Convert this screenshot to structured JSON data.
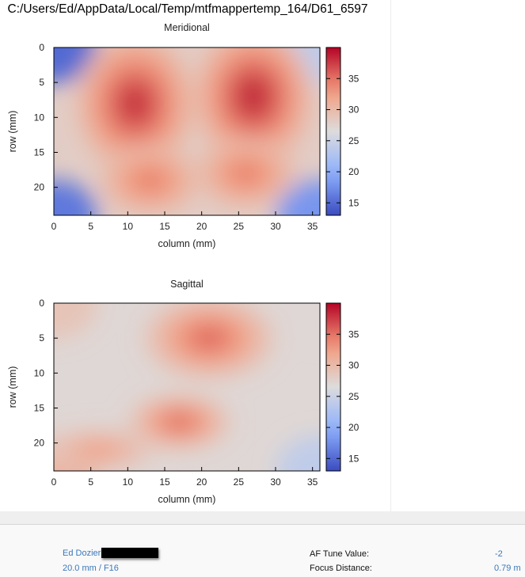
{
  "file_title": "C:/Users/Ed/AppData/Local/Temp/mtfmappertemp_164/D61_6597",
  "chart_data": [
    {
      "type": "heatmap",
      "title": "Meridional",
      "xlabel": "column (mm)",
      "ylabel": "row (mm)",
      "xlim": [
        0,
        36
      ],
      "ylim": [
        0,
        24
      ],
      "y_inverted": true,
      "xticks": [
        0,
        5,
        10,
        15,
        20,
        25,
        30,
        35
      ],
      "yticks": [
        0,
        5,
        10,
        15,
        20
      ],
      "colorbar": {
        "min": 13,
        "max": 40,
        "ticks": [
          15,
          20,
          25,
          30,
          35
        ]
      },
      "background_value": 28,
      "blobs": [
        {
          "x": 11,
          "y": 8,
          "rx": 8,
          "ry": 10,
          "peak": 38.5
        },
        {
          "x": 27,
          "y": 7,
          "rx": 8,
          "ry": 10,
          "peak": 39
        },
        {
          "x": 13,
          "y": 19,
          "rx": 7,
          "ry": 5,
          "peak": 35
        },
        {
          "x": 26,
          "y": 18,
          "rx": 7,
          "ry": 5,
          "peak": 35
        }
      ],
      "corner_values": {
        "top_left": 15,
        "top_right": 24,
        "bottom_left": 16,
        "bottom_right": 18
      }
    },
    {
      "type": "heatmap",
      "title": "Sagittal",
      "xlabel": "column (mm)",
      "ylabel": "row (mm)",
      "xlim": [
        0,
        36
      ],
      "ylim": [
        0,
        24
      ],
      "y_inverted": true,
      "xticks": [
        0,
        5,
        10,
        15,
        20,
        25,
        30,
        35
      ],
      "yticks": [
        0,
        5,
        10,
        15,
        20
      ],
      "colorbar": {
        "min": 13,
        "max": 40,
        "ticks": [
          15,
          20,
          25,
          30,
          35
        ]
      },
      "background_value": 27,
      "blobs": [
        {
          "x": 21,
          "y": 5,
          "rx": 9,
          "ry": 6,
          "peak": 36
        },
        {
          "x": 17,
          "y": 17,
          "rx": 7,
          "ry": 4,
          "peak": 36
        },
        {
          "x": 6,
          "y": 21,
          "rx": 8,
          "ry": 3,
          "peak": 33
        }
      ],
      "corner_values": {
        "top_left": 29,
        "top_right": 27,
        "bottom_left": 31,
        "bottom_right": 24
      }
    }
  ],
  "info": {
    "photographer": "Ed Dozier",
    "lens": "20.0 mm / F16",
    "af_tune_label": "AF Tune Value:",
    "af_tune_value": "-2",
    "focus_distance_label": "Focus Distance:",
    "focus_distance_value": "0.79 m"
  }
}
